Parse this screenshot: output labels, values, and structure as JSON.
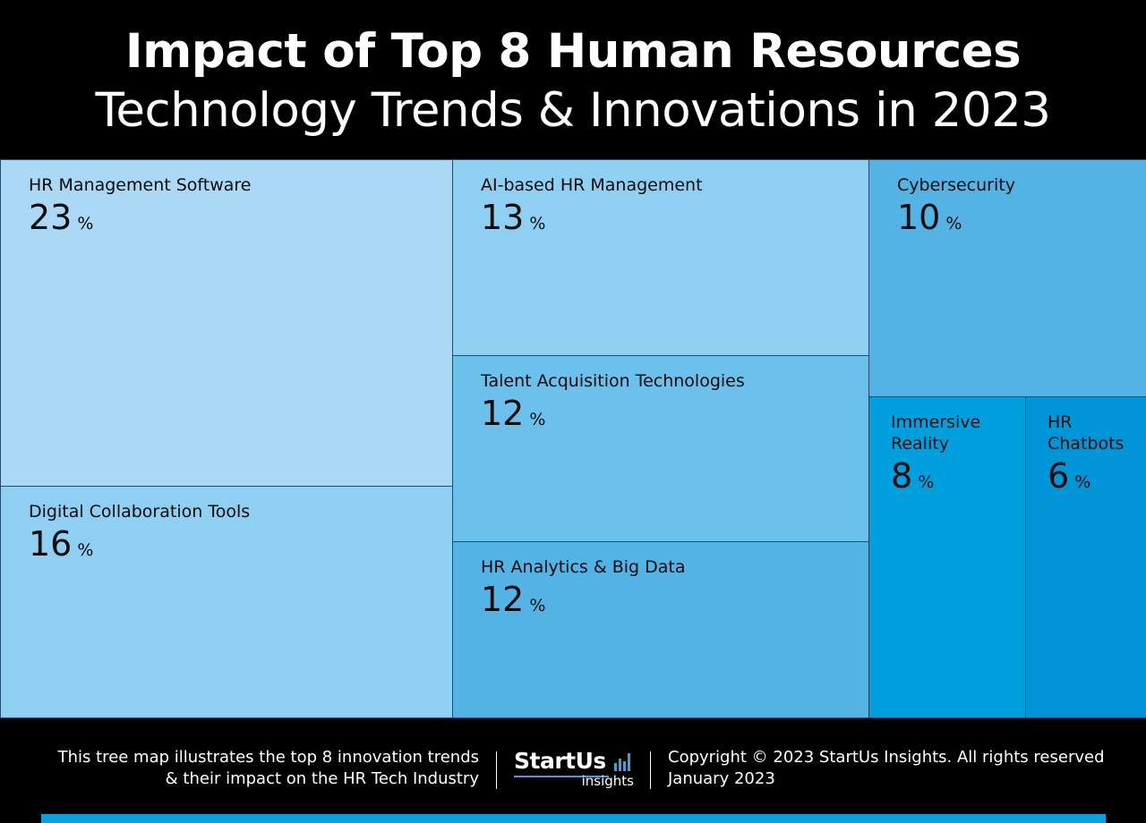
{
  "header": {
    "title_line1": "Impact of Top 8 Human Resources",
    "title_line2": "Technology Trends & Innovations in 2023"
  },
  "chart_data": {
    "type": "treemap",
    "title": "Impact of Top 8 Human Resources Technology Trends & Innovations in 2023",
    "unit": "%",
    "items": [
      {
        "label": "HR Management Software",
        "value": 23,
        "color": "#aad8f5"
      },
      {
        "label": "Digital Collaboration Tools",
        "value": 16,
        "color": "#8fcff1"
      },
      {
        "label": "AI-based HR Management",
        "value": 13,
        "color": "#8fcff1"
      },
      {
        "label": "Talent Acquisition Technologies",
        "value": 12,
        "color": "#6cc0ec"
      },
      {
        "label": "HR Analytics & Big Data",
        "value": 12,
        "color": "#52b3e4"
      },
      {
        "label": "Cybersecurity",
        "value": 10,
        "color": "#52b3e4"
      },
      {
        "label": "Immersive Reality",
        "value": 8,
        "color": "#009fde"
      },
      {
        "label": "HR Chatbots",
        "value": 6,
        "color": "#0095d6"
      }
    ]
  },
  "footer": {
    "description_line1": "This tree map illustrates the top 8 innovation trends",
    "description_line2": "& their impact on the HR Tech Industry",
    "logo_main": "StartUs",
    "logo_sub": "insights",
    "copyright_line1": "Copyright © 2023 StartUs Insights. All rights reserved",
    "copyright_line2": "January 2023",
    "accent_color": "#0b9fde"
  }
}
